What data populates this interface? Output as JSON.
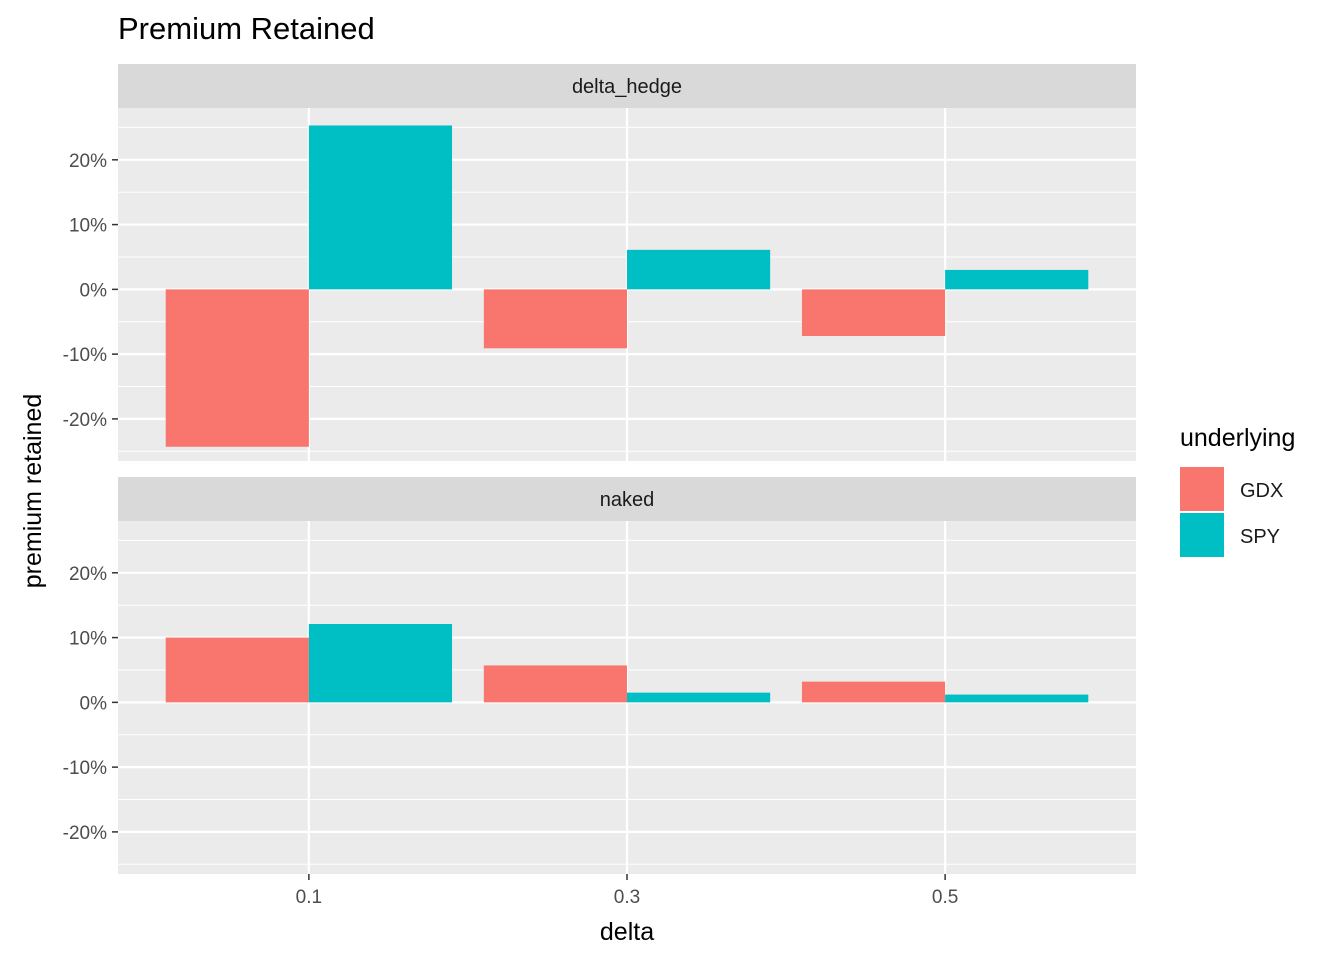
{
  "chart_data": {
    "type": "bar",
    "title": "Premium Retained",
    "xlabel": "delta",
    "ylabel": "premium retained",
    "categories": [
      "0.1",
      "0.3",
      "0.5"
    ],
    "ylim": [
      -0.265,
      0.28
    ],
    "y_ticks": [
      -0.2,
      -0.1,
      0,
      0.1,
      0.2
    ],
    "y_tick_labels": [
      "-20%",
      "-10%",
      "0%",
      "10%",
      "20%"
    ],
    "legend": {
      "title": "underlying",
      "placement": "right",
      "entries": [
        {
          "label": "GDX",
          "color": "#F8766D"
        },
        {
          "label": "SPY",
          "color": "#00BFC4"
        }
      ]
    },
    "facets": [
      {
        "label": "delta_hedge",
        "series": [
          {
            "name": "GDX",
            "values": [
              -0.243,
              -0.091,
              -0.072
            ]
          },
          {
            "name": "SPY",
            "values": [
              0.253,
              0.061,
              0.03
            ]
          }
        ]
      },
      {
        "label": "naked",
        "series": [
          {
            "name": "GDX",
            "values": [
              0.1,
              0.057,
              0.032
            ]
          },
          {
            "name": "SPY",
            "values": [
              0.121,
              0.015,
              0.012
            ]
          }
        ]
      }
    ],
    "grid": true
  }
}
